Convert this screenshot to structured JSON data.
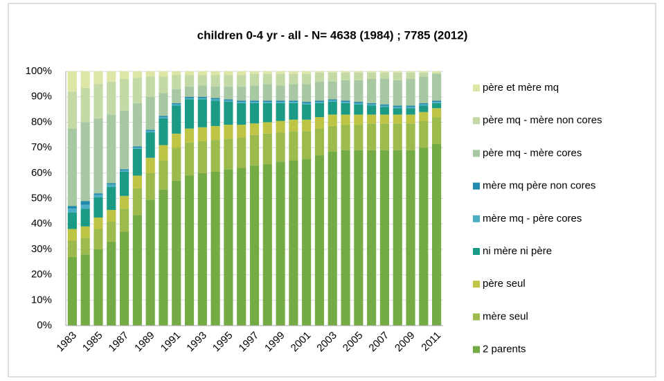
{
  "chart_data": {
    "type": "stacked_bar",
    "title": "children 0-4 yr - all - N= 4638 (1984) ; 7785 (2012)",
    "categories": [
      "1983",
      null,
      "1985",
      null,
      "1987",
      null,
      "1989",
      null,
      "1991",
      null,
      "1993",
      null,
      "1995",
      null,
      "1997",
      null,
      "1999",
      null,
      "2001",
      null,
      "2003",
      null,
      "2005",
      null,
      "2007",
      null,
      "2009",
      null,
      "2011"
    ],
    "series": [
      {
        "name": "2 parents",
        "color": "#74ab45",
        "values": [
          27,
          28,
          30,
          33,
          37,
          43.5,
          49.5,
          53.5,
          57,
          59,
          60,
          60.5,
          61.5,
          62,
          63,
          63.5,
          64.5,
          65,
          65.5,
          67,
          68.5,
          69,
          69,
          69,
          69,
          69,
          69,
          70,
          71.5
        ]
      },
      {
        "name": "mère seul",
        "color": "#9dbb4c",
        "values": [
          6.5,
          6.5,
          8,
          8,
          9,
          10.5,
          10.5,
          11.5,
          13,
          13,
          12.5,
          12.5,
          12,
          12,
          12,
          12,
          11.5,
          11.5,
          11,
          10.5,
          10,
          10,
          10,
          10.5,
          10.5,
          10.5,
          10.5,
          10.5,
          10.5
        ]
      },
      {
        "name": "père seul",
        "color": "#bec544",
        "values": [
          4.5,
          4.5,
          4.5,
          4.5,
          5,
          5,
          6,
          6,
          5.5,
          5.5,
          5.5,
          5.5,
          5.5,
          5,
          4.5,
          4.5,
          4.5,
          4.5,
          4.5,
          4.5,
          4.5,
          4,
          4,
          3.5,
          3.5,
          3.5,
          3.5,
          3.5,
          3.5
        ]
      },
      {
        "name": "ni mère ni père",
        "color": "#1b9a86",
        "values": [
          6.5,
          7,
          8,
          9,
          9.5,
          10.5,
          10,
          10.5,
          11,
          11.5,
          11,
          10,
          9,
          8.5,
          8,
          7.5,
          7,
          6.5,
          6,
          5.5,
          5,
          4.5,
          4,
          3.5,
          3,
          2.5,
          2.5,
          2.5,
          2
        ]
      },
      {
        "name": "mère mq - père cores",
        "color": "#4cafc4",
        "values": [
          1.5,
          1.5,
          1,
          1,
          0.5,
          0.5,
          0.5,
          0.5,
          0.5,
          0.5,
          0.5,
          0.5,
          0.5,
          0.5,
          0.5,
          0.5,
          0.5,
          0.5,
          0.5,
          0.5,
          0.5,
          0.5,
          0.5,
          0.5,
          0.5,
          0.5,
          0.5,
          0.5,
          0.5
        ]
      },
      {
        "name": "mère mq père non cores",
        "color": "#2389ad",
        "values": [
          1,
          1.5,
          0.5,
          0.5,
          0.5,
          0.5,
          0.5,
          0.5,
          0.5,
          0.5,
          0.5,
          0.5,
          0.5,
          0.5,
          0.5,
          0.5,
          0.5,
          0.5,
          0.5,
          0.5,
          0.5,
          0.5,
          0.5,
          0.5,
          0.5,
          0.5,
          0.5,
          0.5,
          0.5
        ]
      },
      {
        "name": "père mq - mère cores",
        "color": "#a8c8a3",
        "values": [
          30.5,
          31,
          29.5,
          27,
          23,
          17,
          13,
          9,
          5.5,
          4,
          4.5,
          4.5,
          5,
          5.5,
          6,
          6.5,
          6,
          6.5,
          7,
          7.5,
          7,
          8,
          8.5,
          9.5,
          10,
          10,
          10.5,
          10.5,
          10.5
        ]
      },
      {
        "name": "père mq - mère non cores",
        "color": "#c3d9a6",
        "values": [
          14.5,
          13.5,
          13.5,
          13,
          12.5,
          10,
          8,
          6.5,
          5.5,
          4.5,
          4,
          4.5,
          4.5,
          4.5,
          4.5,
          4,
          4.5,
          4,
          4,
          3.5,
          3.5,
          3,
          3,
          2.5,
          2.5,
          3,
          2.5,
          1.5,
          0.5
        ]
      },
      {
        "name": "père et mère mq",
        "color": "#dde6a5",
        "values": [
          8,
          6.5,
          5,
          4,
          3,
          2.5,
          2,
          2,
          1.5,
          1.5,
          1.5,
          1.5,
          1.5,
          1.5,
          1,
          1,
          1,
          1,
          1,
          0.5,
          0.5,
          0.5,
          0.5,
          0.5,
          0.5,
          0.5,
          0.5,
          0.5,
          0.5
        ]
      }
    ],
    "ylim": [
      0,
      100
    ],
    "yticks": [
      {
        "value": 0,
        "label": "0%"
      },
      {
        "value": 10,
        "label": "10%"
      },
      {
        "value": 20,
        "label": "20%"
      },
      {
        "value": 30,
        "label": "30%"
      },
      {
        "value": 40,
        "label": "40%"
      },
      {
        "value": 50,
        "label": "50%"
      },
      {
        "value": 60,
        "label": "60%"
      },
      {
        "value": 70,
        "label": "70%"
      },
      {
        "value": 80,
        "label": "80%"
      },
      {
        "value": 90,
        "label": "90%"
      },
      {
        "value": 100,
        "label": "100%"
      }
    ],
    "grid": true,
    "legend": "right"
  }
}
